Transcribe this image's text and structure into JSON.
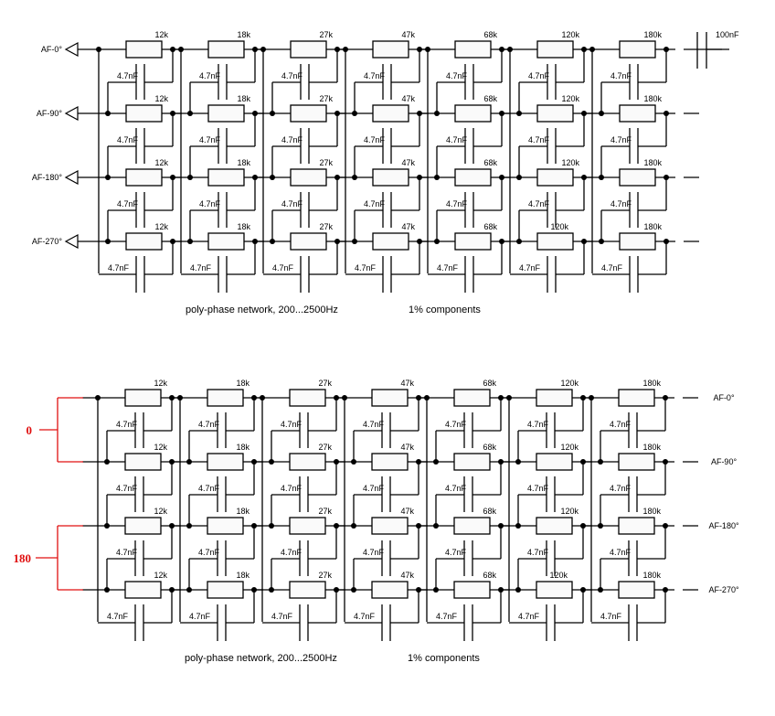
{
  "networks": [
    {
      "inputs": [
        "AF-0°",
        "AF-90°",
        "AF-180°",
        "AF-270°"
      ],
      "outputs": [],
      "resistors": [
        "12k",
        "18k",
        "27k",
        "47k",
        "68k",
        "120k",
        "180k"
      ],
      "capacitor": "4.7nF",
      "coupling_capacitor": "100nF",
      "caption": "poly-phase network, 200...2500Hz",
      "note": "1% components"
    },
    {
      "inputs": [],
      "outputs": [
        "AF-0°",
        "AF-90°",
        "AF-180°",
        "AF-270°"
      ],
      "resistors": [
        "12k",
        "18k",
        "27k",
        "47k",
        "68k",
        "120k",
        "180k"
      ],
      "capacitor": "4.7nF",
      "drive_labels": [
        "0",
        "180"
      ],
      "drive_color": "#e01010",
      "caption": "poly-phase network, 200...2500Hz",
      "note": "1% components"
    }
  ]
}
